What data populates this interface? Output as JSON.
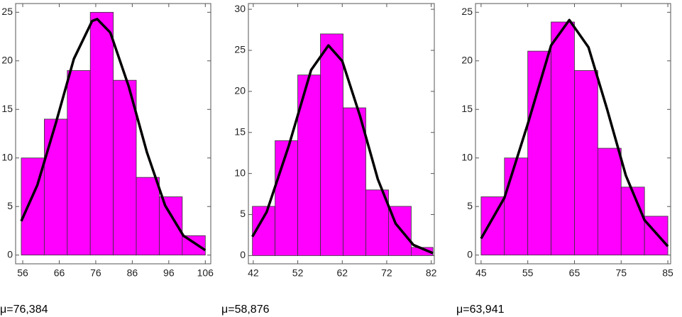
{
  "chart_data": [
    {
      "type": "histogram",
      "bins": [
        55.6,
        61.9,
        68.2,
        74.5,
        80.8,
        87.1,
        93.4,
        99.7,
        106
      ],
      "values": [
        10,
        14,
        19,
        25,
        18,
        8,
        6,
        2
      ],
      "color": "#ff00ff",
      "curve": {
        "x": [
          55.6,
          60,
          65,
          70,
          75,
          76.4,
          80,
          85,
          90,
          95,
          100,
          106
        ],
        "y": [
          3.5,
          7.2,
          13.5,
          20.2,
          24.1,
          24.3,
          22.9,
          17.4,
          10.6,
          5.1,
          2.0,
          0.5
        ]
      },
      "xlim": [
        54.05,
        107.5
      ],
      "ylim": [
        -0.9,
        25.9
      ],
      "xticks": [
        56,
        66,
        76,
        86,
        96,
        106
      ],
      "yticks": [
        0,
        5,
        10,
        15,
        20,
        25
      ],
      "annotation": "μ=76,384"
    },
    {
      "type": "histogram",
      "bins": [
        41.8,
        46.9,
        52.0,
        57.1,
        62.2,
        67.3,
        72.4,
        77.5,
        82.4
      ],
      "values": [
        6,
        14,
        22,
        27,
        18,
        8,
        6,
        1
      ],
      "color": "#ff00ff",
      "curve": {
        "x": [
          41.8,
          45,
          50,
          55,
          58.9,
          62,
          66,
          70,
          74,
          78,
          82.4
        ],
        "y": [
          2.3,
          5.3,
          13.4,
          22.6,
          25.6,
          23.7,
          17.0,
          9.3,
          3.9,
          1.3,
          0.3
        ]
      },
      "xlim": [
        40.9,
        82.7
      ],
      "ylim": [
        -1.0,
        30.7
      ],
      "xticks": [
        42,
        52,
        62,
        72,
        82
      ],
      "yticks": [
        0,
        5,
        10,
        15,
        20,
        25,
        30
      ],
      "annotation": "μ=58,876"
    },
    {
      "type": "histogram",
      "bins": [
        45,
        50,
        55,
        60,
        65,
        70,
        75,
        80,
        85
      ],
      "values": [
        6,
        10,
        21,
        24,
        19,
        11,
        7,
        4
      ],
      "color": "#ff00ff",
      "curve": {
        "x": [
          45,
          50,
          55,
          60,
          63.9,
          68,
          72,
          76,
          80,
          85
        ],
        "y": [
          1.7,
          5.9,
          13.5,
          21.6,
          24.2,
          21.4,
          15.0,
          8.2,
          3.6,
          0.9
        ]
      },
      "xlim": [
        43.8,
        85.6
      ],
      "ylim": [
        -0.9,
        25.9
      ],
      "xticks": [
        45,
        55,
        65,
        75,
        85
      ],
      "yticks": [
        0,
        5,
        10,
        15,
        20,
        25
      ],
      "annotation": "μ=63,941"
    }
  ]
}
